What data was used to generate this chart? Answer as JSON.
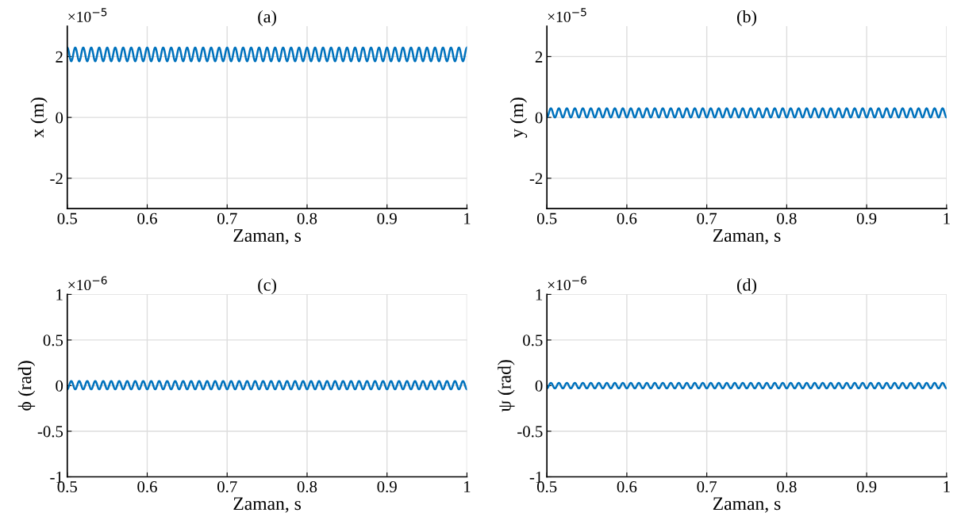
{
  "chart_data": [
    {
      "type": "line",
      "title": "(a)",
      "xlabel": "Zaman, s",
      "ylabel": "x (m)",
      "annotations": [
        "×10$^{−5}$"
      ],
      "grid": true,
      "xlim": [
        0.5,
        1
      ],
      "ylim": [
        -3,
        3
      ],
      "xticks": [
        0.5,
        0.6,
        0.7,
        0.8,
        0.9,
        1
      ],
      "yticks": [
        -2,
        0,
        2
      ],
      "x": [
        0.5,
        0.505,
        0.51,
        0.515,
        0.52,
        0.525,
        0.53,
        0.535,
        0.54,
        0.545,
        0.55,
        0.555,
        0.56,
        0.565,
        0.57,
        0.575,
        0.58,
        0.585,
        0.59,
        0.595,
        0.6,
        0.605,
        0.61,
        0.615,
        0.62,
        0.625,
        0.63,
        0.635,
        0.64,
        0.645,
        0.65,
        0.655,
        0.66,
        0.665,
        0.67,
        0.675,
        0.68,
        0.685,
        0.69,
        0.695,
        0.7,
        0.705,
        0.71,
        0.715,
        0.72,
        0.725,
        0.73,
        0.735,
        0.74,
        0.745,
        0.75,
        0.755,
        0.76,
        0.765,
        0.77,
        0.775,
        0.78,
        0.785,
        0.79,
        0.795,
        0.8,
        0.805,
        0.81,
        0.815,
        0.82,
        0.825,
        0.83,
        0.835,
        0.84,
        0.845,
        0.85,
        0.855,
        0.86,
        0.865,
        0.87,
        0.875,
        0.88,
        0.885,
        0.89,
        0.895,
        0.9,
        0.905,
        0.91,
        0.915,
        0.92,
        0.925,
        0.93,
        0.935,
        0.94,
        0.945,
        0.95,
        0.955,
        0.96,
        0.965,
        0.97,
        0.975,
        0.98,
        0.985,
        0.99,
        0.995,
        1
      ],
      "series": [
        {
          "color": "#0072bd",
          "values": [
            2.3,
            1.85,
            2.3,
            1.85,
            2.3,
            1.85,
            2.3,
            1.85,
            2.3,
            1.85,
            2.3,
            1.85,
            2.3,
            1.85,
            2.3,
            1.85,
            2.3,
            1.85,
            2.3,
            1.85,
            2.3,
            1.85,
            2.3,
            1.85,
            2.3,
            1.85,
            2.3,
            1.85,
            2.3,
            1.85,
            2.3,
            1.85,
            2.3,
            1.85,
            2.3,
            1.85,
            2.3,
            1.85,
            2.3,
            1.85,
            2.3,
            1.85,
            2.3,
            1.85,
            2.3,
            1.85,
            2.3,
            1.85,
            2.3,
            1.85,
            2.3,
            1.85,
            2.3,
            1.85,
            2.3,
            1.85,
            2.3,
            1.85,
            2.3,
            1.85,
            2.3,
            1.85,
            2.3,
            1.85,
            2.3,
            1.85,
            2.3,
            1.85,
            2.3,
            1.85,
            2.3,
            1.85,
            2.3,
            1.85,
            2.3,
            1.85,
            2.3,
            1.85,
            2.3,
            1.85,
            2.3,
            1.85,
            2.3,
            1.85,
            2.3,
            1.85,
            2.3,
            1.85,
            2.3,
            1.85,
            2.3,
            1.85,
            2.3,
            1.85,
            2.3,
            1.85,
            2.3,
            1.85,
            2.3,
            1.85,
            2.3
          ]
        }
      ]
    },
    {
      "type": "line",
      "title": "(b)",
      "xlabel": "Zaman, s",
      "ylabel": "y (m)",
      "annotations": [
        "×10$^{−5}$"
      ],
      "grid": true,
      "xlim": [
        0.5,
        1
      ],
      "ylim": [
        -3,
        3
      ],
      "xticks": [
        0.5,
        0.6,
        0.7,
        0.8,
        0.9,
        1
      ],
      "yticks": [
        -2,
        0,
        2
      ],
      "x": [
        0.5,
        0.505,
        0.51,
        0.515,
        0.52,
        0.525,
        0.53,
        0.535,
        0.54,
        0.545,
        0.55,
        0.555,
        0.56,
        0.565,
        0.57,
        0.575,
        0.58,
        0.585,
        0.59,
        0.595,
        0.6,
        0.605,
        0.61,
        0.615,
        0.62,
        0.625,
        0.63,
        0.635,
        0.64,
        0.645,
        0.65,
        0.655,
        0.66,
        0.665,
        0.67,
        0.675,
        0.68,
        0.685,
        0.69,
        0.695,
        0.7,
        0.705,
        0.71,
        0.715,
        0.72,
        0.725,
        0.73,
        0.735,
        0.74,
        0.745,
        0.75,
        0.755,
        0.76,
        0.765,
        0.77,
        0.775,
        0.78,
        0.785,
        0.79,
        0.795,
        0.8,
        0.805,
        0.81,
        0.815,
        0.82,
        0.825,
        0.83,
        0.835,
        0.84,
        0.845,
        0.85,
        0.855,
        0.86,
        0.865,
        0.87,
        0.875,
        0.88,
        0.885,
        0.89,
        0.895,
        0.9,
        0.905,
        0.91,
        0.915,
        0.92,
        0.925,
        0.93,
        0.935,
        0.94,
        0.945,
        0.95,
        0.955,
        0.96,
        0.965,
        0.97,
        0.975,
        0.98,
        0.985,
        0.99,
        0.995,
        1
      ],
      "series": [
        {
          "color": "#0072bd",
          "values": [
            0,
            0.3,
            0,
            0.3,
            0,
            0.3,
            0,
            0.3,
            0,
            0.3,
            0,
            0.3,
            0,
            0.3,
            0,
            0.3,
            0,
            0.3,
            0,
            0.3,
            0,
            0.3,
            0,
            0.3,
            0,
            0.3,
            0,
            0.3,
            0,
            0.3,
            0,
            0.3,
            0,
            0.3,
            0,
            0.3,
            0,
            0.3,
            0,
            0.3,
            0,
            0.3,
            0,
            0.3,
            0,
            0.3,
            0,
            0.3,
            0,
            0.3,
            0,
            0.3,
            0,
            0.3,
            0,
            0.3,
            0,
            0.3,
            0,
            0.3,
            0,
            0.3,
            0,
            0.3,
            0,
            0.3,
            0,
            0.3,
            0,
            0.3,
            0,
            0.3,
            0,
            0.3,
            0,
            0.3,
            0,
            0.3,
            0,
            0.3,
            0,
            0.3,
            0,
            0.3,
            0,
            0.3,
            0,
            0.3,
            0,
            0.3,
            0,
            0.3,
            0,
            0.3,
            0,
            0.3,
            0,
            0.3,
            0,
            0.3,
            0
          ]
        }
      ]
    },
    {
      "type": "line",
      "title": "(c)",
      "xlabel": "Zaman, s",
      "ylabel": "ϕ (rad)",
      "annotations": [
        "×10$^{−6}$"
      ],
      "grid": true,
      "xlim": [
        0.5,
        1
      ],
      "ylim": [
        -1,
        1
      ],
      "xticks": [
        0.5,
        0.6,
        0.7,
        0.8,
        0.9,
        1
      ],
      "yticks": [
        -1,
        -0.5,
        0,
        0.5,
        1
      ],
      "x": [
        0.5,
        0.505,
        0.51,
        0.515,
        0.52,
        0.525,
        0.53,
        0.535,
        0.54,
        0.545,
        0.55,
        0.555,
        0.56,
        0.565,
        0.57,
        0.575,
        0.58,
        0.585,
        0.59,
        0.595,
        0.6,
        0.605,
        0.61,
        0.615,
        0.62,
        0.625,
        0.63,
        0.635,
        0.64,
        0.645,
        0.65,
        0.655,
        0.66,
        0.665,
        0.67,
        0.675,
        0.68,
        0.685,
        0.69,
        0.695,
        0.7,
        0.705,
        0.71,
        0.715,
        0.72,
        0.725,
        0.73,
        0.735,
        0.74,
        0.745,
        0.75,
        0.755,
        0.76,
        0.765,
        0.77,
        0.775,
        0.78,
        0.785,
        0.79,
        0.795,
        0.8,
        0.805,
        0.81,
        0.815,
        0.82,
        0.825,
        0.83,
        0.835,
        0.84,
        0.845,
        0.85,
        0.855,
        0.86,
        0.865,
        0.87,
        0.875,
        0.88,
        0.885,
        0.89,
        0.895,
        0.9,
        0.905,
        0.91,
        0.915,
        0.92,
        0.925,
        0.93,
        0.935,
        0.94,
        0.945,
        0.95,
        0.955,
        0.96,
        0.965,
        0.97,
        0.975,
        0.98,
        0.985,
        0.99,
        0.995,
        1
      ],
      "series": [
        {
          "color": "#0072bd",
          "values": [
            -0.04,
            0.05,
            -0.04,
            0.05,
            -0.04,
            0.05,
            -0.04,
            0.05,
            -0.04,
            0.05,
            -0.04,
            0.05,
            -0.04,
            0.05,
            -0.04,
            0.05,
            -0.04,
            0.05,
            -0.04,
            0.05,
            -0.04,
            0.05,
            -0.04,
            0.05,
            -0.04,
            0.05,
            -0.04,
            0.05,
            -0.04,
            0.05,
            -0.04,
            0.05,
            -0.04,
            0.05,
            -0.04,
            0.05,
            -0.04,
            0.05,
            -0.04,
            0.05,
            -0.04,
            0.05,
            -0.04,
            0.05,
            -0.04,
            0.05,
            -0.04,
            0.05,
            -0.04,
            0.05,
            -0.04,
            0.05,
            -0.04,
            0.05,
            -0.04,
            0.05,
            -0.04,
            0.05,
            -0.04,
            0.05,
            -0.04,
            0.05,
            -0.04,
            0.05,
            -0.04,
            0.05,
            -0.04,
            0.05,
            -0.04,
            0.05,
            -0.04,
            0.05,
            -0.04,
            0.05,
            -0.04,
            0.05,
            -0.04,
            0.05,
            -0.04,
            0.05,
            -0.04,
            0.05,
            -0.04,
            0.05,
            -0.04,
            0.05,
            -0.04,
            0.05,
            -0.04,
            0.05,
            -0.04,
            0.05,
            -0.04,
            0.05,
            -0.04,
            0.05,
            -0.04,
            0.05,
            -0.04,
            0.05,
            -0.04
          ]
        }
      ]
    },
    {
      "type": "line",
      "title": "(d)",
      "xlabel": "Zaman, s",
      "ylabel": "ψ (rad)",
      "annotations": [
        "×10$^{−6}$"
      ],
      "grid": true,
      "xlim": [
        0.5,
        1
      ],
      "ylim": [
        -1,
        1
      ],
      "xticks": [
        0.5,
        0.6,
        0.7,
        0.8,
        0.9,
        1
      ],
      "yticks": [
        -1,
        -0.5,
        0,
        0.5,
        1
      ],
      "x": [
        0.5,
        0.505,
        0.51,
        0.515,
        0.52,
        0.525,
        0.53,
        0.535,
        0.54,
        0.545,
        0.55,
        0.555,
        0.56,
        0.565,
        0.57,
        0.575,
        0.58,
        0.585,
        0.59,
        0.595,
        0.6,
        0.605,
        0.61,
        0.615,
        0.62,
        0.625,
        0.63,
        0.635,
        0.64,
        0.645,
        0.65,
        0.655,
        0.66,
        0.665,
        0.67,
        0.675,
        0.68,
        0.685,
        0.69,
        0.695,
        0.7,
        0.705,
        0.71,
        0.715,
        0.72,
        0.725,
        0.73,
        0.735,
        0.74,
        0.745,
        0.75,
        0.755,
        0.76,
        0.765,
        0.77,
        0.775,
        0.78,
        0.785,
        0.79,
        0.795,
        0.8,
        0.805,
        0.81,
        0.815,
        0.82,
        0.825,
        0.83,
        0.835,
        0.84,
        0.845,
        0.85,
        0.855,
        0.86,
        0.865,
        0.87,
        0.875,
        0.88,
        0.885,
        0.89,
        0.895,
        0.9,
        0.905,
        0.91,
        0.915,
        0.92,
        0.925,
        0.93,
        0.935,
        0.94,
        0.945,
        0.95,
        0.955,
        0.96,
        0.965,
        0.97,
        0.975,
        0.98,
        0.985,
        0.99,
        0.995,
        1
      ],
      "series": [
        {
          "color": "#0072bd",
          "values": [
            -0.03,
            0.03,
            -0.03,
            0.03,
            -0.03,
            0.03,
            -0.03,
            0.03,
            -0.03,
            0.03,
            -0.03,
            0.03,
            -0.03,
            0.03,
            -0.03,
            0.03,
            -0.03,
            0.03,
            -0.03,
            0.03,
            -0.03,
            0.03,
            -0.03,
            0.03,
            -0.03,
            0.03,
            -0.03,
            0.03,
            -0.03,
            0.03,
            -0.03,
            0.03,
            -0.03,
            0.03,
            -0.03,
            0.03,
            -0.03,
            0.03,
            -0.03,
            0.03,
            -0.03,
            0.03,
            -0.03,
            0.03,
            -0.03,
            0.03,
            -0.03,
            0.03,
            -0.03,
            0.03,
            -0.03,
            0.03,
            -0.03,
            0.03,
            -0.03,
            0.03,
            -0.03,
            0.03,
            -0.03,
            0.03,
            -0.03,
            0.03,
            -0.03,
            0.03,
            -0.03,
            0.03,
            -0.03,
            0.03,
            -0.03,
            0.03,
            -0.03,
            0.03,
            -0.03,
            0.03,
            -0.03,
            0.03,
            -0.03,
            0.03,
            -0.03,
            0.03,
            -0.03,
            0.03,
            -0.03,
            0.03,
            -0.03,
            0.03,
            -0.03,
            0.03,
            -0.03,
            0.03,
            -0.03,
            0.03,
            -0.03,
            0.03,
            -0.03,
            0.03,
            -0.03,
            0.03,
            -0.03,
            0.03,
            -0.03
          ]
        }
      ]
    }
  ]
}
